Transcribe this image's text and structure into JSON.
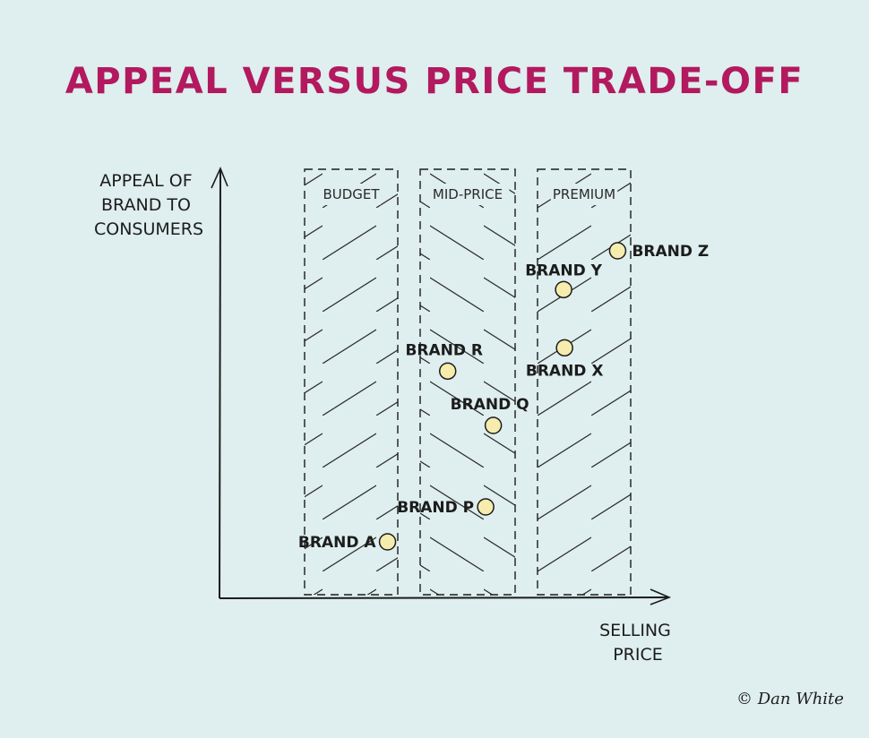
{
  "title": "APPEAL VERSUS PRICE TRADE-OFF",
  "credit": "© Dan White",
  "colors": {
    "title": "#b2195e",
    "point_fill": "#f5ecae",
    "ink": "#1c1c1c",
    "background": "#dfeeee"
  },
  "chart_data": {
    "type": "scatter",
    "title": "APPEAL VERSUS PRICE TRADE-OFF",
    "ylabel_lines": [
      "APPEAL OF",
      "BRAND TO",
      "CONSUMERS"
    ],
    "xlabel_lines": [
      "SELLING",
      "PRICE"
    ],
    "axis_numeric_labels": false,
    "grid": false,
    "price_bands": [
      {
        "label": "BUDGET",
        "hatch": "up"
      },
      {
        "label": "MID-PRICE",
        "hatch": "down"
      },
      {
        "label": "PREMIUM",
        "hatch": "up"
      }
    ],
    "points": [
      {
        "label": "BRAND A",
        "band": "BUDGET",
        "price": 0.89,
        "appeal": 0.2,
        "label_pos": "left"
      },
      {
        "label": "BRAND P",
        "band": "MID-PRICE",
        "price": 0.69,
        "appeal": 0.29,
        "label_pos": "left"
      },
      {
        "label": "BRAND Q",
        "band": "MID-PRICE",
        "price": 0.77,
        "appeal": 0.5,
        "label_pos": "above-left"
      },
      {
        "label": "BRAND R",
        "band": "MID-PRICE",
        "price": 0.29,
        "appeal": 0.64,
        "label_pos": "above-left"
      },
      {
        "label": "BRAND X",
        "band": "PREMIUM",
        "price": 0.29,
        "appeal": 0.7,
        "label_pos": "below"
      },
      {
        "label": "BRAND Y",
        "band": "PREMIUM",
        "price": 0.28,
        "appeal": 0.85,
        "label_pos": "above"
      },
      {
        "label": "BRAND Z",
        "band": "PREMIUM",
        "price": 0.86,
        "appeal": 0.95,
        "label_pos": "right"
      }
    ]
  }
}
